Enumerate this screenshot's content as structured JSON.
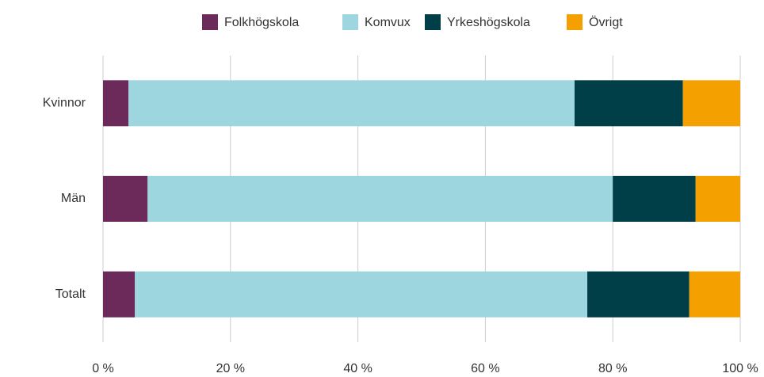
{
  "chart_data": {
    "type": "bar",
    "orientation": "horizontal",
    "stacked": true,
    "categories": [
      "Kvinnor",
      "Män",
      "Totalt"
    ],
    "series": [
      {
        "name": "Folkhögskola",
        "color": "#6b2a5a",
        "values": [
          4,
          7,
          5
        ]
      },
      {
        "name": "Komvux",
        "color": "#9dd6df",
        "values": [
          70,
          73,
          71
        ]
      },
      {
        "name": "Yrkeshögskola",
        "color": "#003f48",
        "values": [
          17,
          13,
          16
        ]
      },
      {
        "name": "Övrigt",
        "color": "#f4a000",
        "values": [
          9,
          7,
          8
        ]
      }
    ],
    "xlim": [
      0,
      100
    ],
    "xticks": [
      {
        "value": 0,
        "label": "0 %"
      },
      {
        "value": 20,
        "label": "20 %"
      },
      {
        "value": 40,
        "label": "40 %"
      },
      {
        "value": 60,
        "label": "60 %"
      },
      {
        "value": 80,
        "label": "80 %"
      },
      {
        "value": 100,
        "label": "100 %"
      }
    ],
    "grid": true,
    "legend": "top"
  }
}
